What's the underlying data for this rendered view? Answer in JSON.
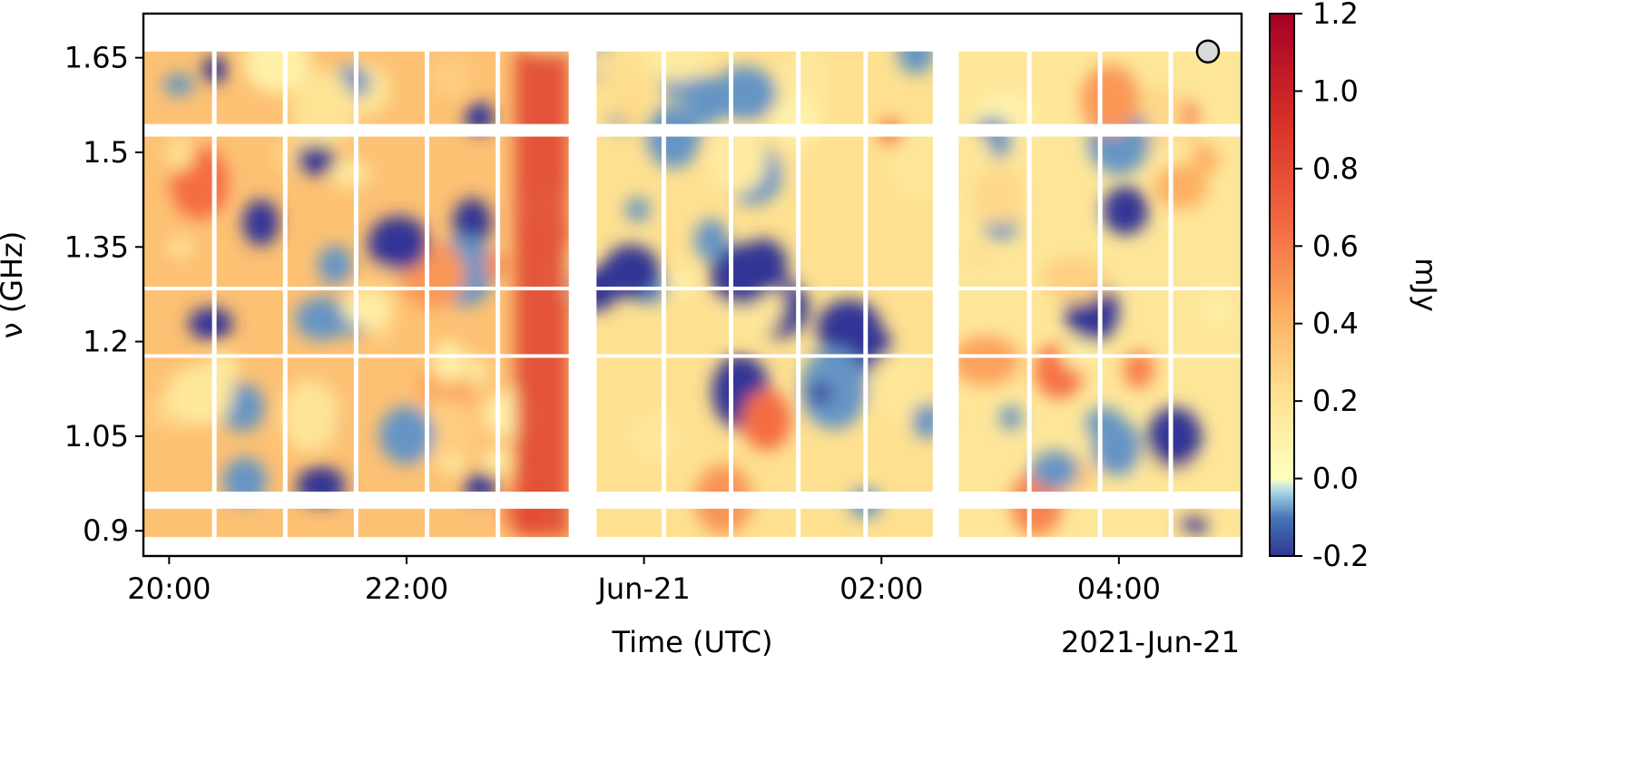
{
  "chart_data": {
    "type": "heatmap",
    "title": "",
    "xlabel": "Time (UTC)",
    "xlabel_secondary": "2021-Jun-21",
    "ylabel": "ν (GHz)",
    "colorbar_label": "mJy",
    "colormap": "RdYlBu_r",
    "x_ticks": [
      {
        "value": "2021-06-20T20:00",
        "label": "20:00"
      },
      {
        "value": "2021-06-20T22:00",
        "label": "22:00"
      },
      {
        "value": "2021-06-21T00:00",
        "label": "Jun-21"
      },
      {
        "value": "2021-06-21T02:00",
        "label": "02:00"
      },
      {
        "value": "2021-06-21T04:00",
        "label": "04:00"
      }
    ],
    "xlim": [
      "2021-06-20T19:47",
      "2021-06-21T05:02"
    ],
    "y_ticks": [
      {
        "value": 0.9,
        "label": "0.9"
      },
      {
        "value": 1.05,
        "label": "1.05"
      },
      {
        "value": 1.2,
        "label": "1.2"
      },
      {
        "value": 1.35,
        "label": "1.35"
      },
      {
        "value": 1.5,
        "label": "1.5"
      },
      {
        "value": 1.65,
        "label": "1.65"
      }
    ],
    "ylim": [
      0.86,
      1.72
    ],
    "colorbar_ticks": [
      {
        "value": 1.2,
        "label": "1.2"
      },
      {
        "value": 1.0,
        "label": "1.0"
      },
      {
        "value": 0.8,
        "label": "0.8"
      },
      {
        "value": 0.6,
        "label": "0.6"
      },
      {
        "value": 0.4,
        "label": "0.4"
      },
      {
        "value": 0.2,
        "label": "0.2"
      },
      {
        "value": 0.0,
        "label": "0.0"
      },
      {
        "value": -0.2,
        "label": "-0.2"
      }
    ],
    "clim": [
      -0.2,
      1.2
    ],
    "observing_blocks": [
      {
        "start": "2021-06-20T19:47",
        "end": "2021-06-20T23:22",
        "mean_mJy": 0.35
      },
      {
        "start": "2021-06-20T23:36",
        "end": "2021-06-21T02:26",
        "mean_mJy": 0.22
      },
      {
        "start": "2021-06-21T02:39",
        "end": "2021-06-21T05:02",
        "mean_mJy": 0.18
      }
    ],
    "frequency_gaps_GHz": [
      [
        0.935,
        0.962
      ],
      [
        1.175,
        1.18
      ],
      [
        1.282,
        1.287
      ],
      [
        1.525,
        1.545
      ]
    ],
    "frequency_top_GHz": 1.66,
    "frequency_bottom_GHz": 0.89,
    "grid": false,
    "legend": "none",
    "marker": {
      "type": "circle",
      "time": "2021-06-21T04:45",
      "frequency_GHz": 1.66,
      "color": "#d9d9d9"
    }
  }
}
